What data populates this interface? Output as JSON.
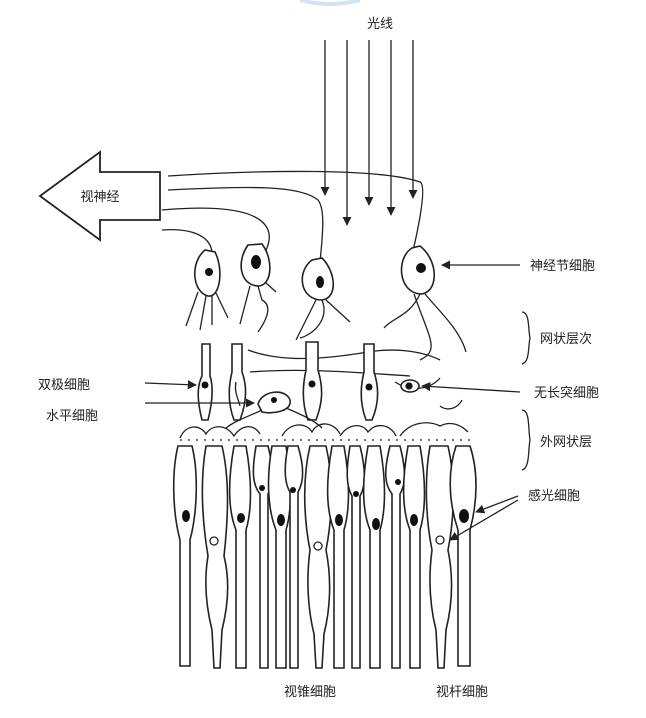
{
  "labels": {
    "light": "光线",
    "optic_nerve": "视神经",
    "ganglion_cell": "神经节细胞",
    "inner_plexiform": "网状层次",
    "amacrine_cell": "无长突细胞",
    "bipolar_cell": "双极细胞",
    "horizontal_cell": "水平细胞",
    "outer_plexiform": "外网状层",
    "photoreceptor": "感光细胞",
    "cone": "视锥细胞",
    "rod": "视杆细胞"
  },
  "colors": {
    "ink": "#222222",
    "background": "#ffffff"
  }
}
